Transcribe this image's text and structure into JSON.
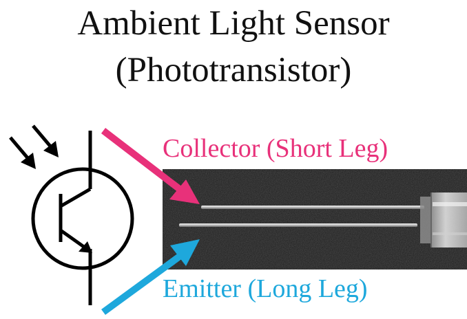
{
  "title": {
    "line1": "Ambient Light Sensor",
    "line2": "(Phototransistor)"
  },
  "labels": {
    "collector": "Collector (Short Leg)",
    "emitter": "Emitter (Long Leg)"
  },
  "colors": {
    "collector": "#e8317a",
    "emitter": "#1ea8dc",
    "symbol": "#000000",
    "photo_background": "#1b1b1b"
  },
  "icons": {
    "symbol": "phototransistor-symbol-icon",
    "light": "incident-light-arrows-icon"
  }
}
